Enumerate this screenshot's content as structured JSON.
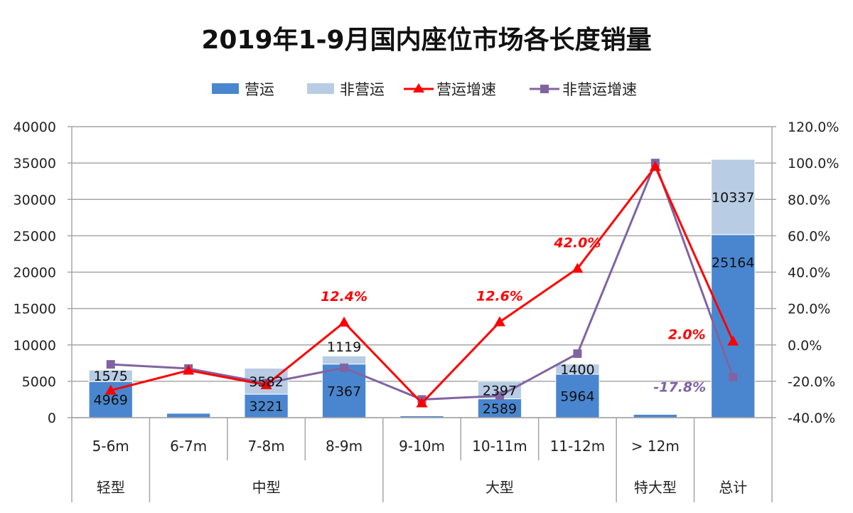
{
  "title": "2019年1-9月国内座位市场各长度销量",
  "legend": [
    {
      "label": "营运",
      "type": "bar",
      "color": "#4a86d0"
    },
    {
      "label": "非营运",
      "type": "bar",
      "color": "#b8cce4"
    },
    {
      "label": "营运增速",
      "type": "line",
      "color": "#ff0000",
      "marker": "triangle"
    },
    {
      "label": "非营运增速",
      "type": "line",
      "color": "#8064a2",
      "marker": "square"
    }
  ],
  "axes": {
    "left_ticks": [
      "0",
      "5000",
      "10000",
      "15000",
      "20000",
      "25000",
      "30000",
      "35000",
      "40000"
    ],
    "right_ticks": [
      "-40.0%",
      "-20.0%",
      "0.0%",
      "20.0%",
      "40.0%",
      "60.0%",
      "80.0%",
      "100.0%",
      "120.0%"
    ]
  },
  "groups": [
    {
      "label": "轻型",
      "span": 1
    },
    {
      "label": "中型",
      "span": 3
    },
    {
      "label": "大型",
      "span": 3
    },
    {
      "label": "特大型",
      "span": 1
    },
    {
      "label": "总计",
      "span": 1
    }
  ],
  "chart_data": {
    "type": "bar",
    "title": "2019年1-9月国内座位市场各长度销量",
    "categories": [
      "5-6m",
      "6-7m",
      "7-8m",
      "8-9m",
      "9-10m",
      "10-11m",
      "11-12m",
      "> 12m",
      ""
    ],
    "category_groups": [
      "轻型",
      "中型",
      "中型",
      "中型",
      "大型",
      "大型",
      "大型",
      "特大型",
      "总计"
    ],
    "series": [
      {
        "name": "营运",
        "type": "stacked-bar",
        "axis": "left",
        "color": "#4a86d0",
        "values": [
          4969,
          600,
          3221,
          7367,
          250,
          2589,
          5964,
          450,
          25164
        ],
        "labels": [
          "4969",
          "",
          "3221",
          "7367",
          "",
          "2589",
          "5964",
          "",
          "25164"
        ]
      },
      {
        "name": "非营运",
        "type": "stacked-bar",
        "axis": "left",
        "color": "#b8cce4",
        "values": [
          1575,
          0,
          3582,
          1119,
          0,
          2397,
          1400,
          0,
          10337
        ],
        "labels": [
          "1575",
          "",
          "3582",
          "1119",
          "",
          "2397",
          "1400",
          "",
          "10337"
        ]
      },
      {
        "name": "营运增速",
        "type": "line",
        "axis": "right",
        "color": "#ff0000",
        "marker": "triangle",
        "values": [
          -25.0,
          -14.0,
          -22.0,
          12.4,
          -32.0,
          12.6,
          42.0,
          98.0,
          2.0
        ],
        "labels": [
          "",
          "",
          "",
          "12.4%",
          "",
          "12.6%",
          "42.0%",
          "",
          "2.0%"
        ]
      },
      {
        "name": "非营运增速",
        "type": "line",
        "axis": "right",
        "color": "#8064a2",
        "marker": "square",
        "values": [
          -10.7,
          -13.0,
          -21.0,
          -12.6,
          -30.0,
          -28.0,
          -4.8,
          100.0,
          -17.8
        ],
        "labels": [
          "",
          "",
          "",
          "",
          "",
          "",
          "",
          "",
          "-17.8%"
        ]
      }
    ],
    "xlabel": "",
    "ylabel": "",
    "ylim": [
      0,
      40000
    ],
    "y2lim": [
      -40,
      120
    ],
    "grid": true,
    "legend_position": "top"
  }
}
